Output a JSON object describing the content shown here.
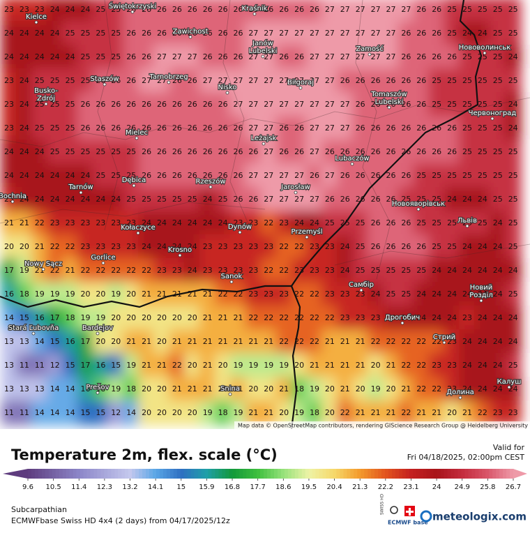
{
  "map": {
    "grid": [
      [
        23,
        23,
        23,
        24,
        24,
        24,
        25,
        25,
        26,
        26,
        26,
        26,
        26,
        26,
        26,
        26,
        26,
        26,
        26,
        26,
        26,
        27,
        27,
        27,
        27,
        27,
        27,
        26,
        26,
        25,
        25,
        25,
        25,
        25
      ],
      [
        24,
        24,
        24,
        24,
        25,
        25,
        25,
        25,
        26,
        26,
        26,
        26,
        26,
        26,
        26,
        26,
        27,
        27,
        27,
        27,
        27,
        27,
        27,
        27,
        27,
        27,
        26,
        26,
        26,
        25,
        24,
        24,
        25,
        25
      ],
      [
        24,
        24,
        24,
        24,
        24,
        25,
        25,
        25,
        26,
        26,
        27,
        27,
        27,
        26,
        26,
        26,
        27,
        27,
        26,
        26,
        27,
        27,
        27,
        27,
        27,
        27,
        26,
        26,
        26,
        26,
        25,
        25,
        25,
        24
      ],
      [
        23,
        24,
        25,
        25,
        25,
        25,
        26,
        26,
        26,
        27,
        27,
        26,
        26,
        27,
        27,
        27,
        27,
        27,
        27,
        27,
        27,
        27,
        26,
        26,
        26,
        26,
        26,
        26,
        25,
        25,
        25,
        25,
        25,
        25
      ],
      [
        23,
        24,
        25,
        25,
        25,
        26,
        26,
        26,
        26,
        26,
        26,
        26,
        26,
        26,
        26,
        27,
        27,
        27,
        27,
        27,
        27,
        27,
        27,
        26,
        26,
        26,
        26,
        26,
        25,
        25,
        25,
        25,
        25,
        24
      ],
      [
        23,
        24,
        25,
        25,
        25,
        26,
        26,
        26,
        26,
        26,
        26,
        26,
        26,
        26,
        26,
        26,
        27,
        27,
        26,
        26,
        27,
        27,
        27,
        26,
        26,
        26,
        26,
        26,
        26,
        26,
        25,
        25,
        25,
        24
      ],
      [
        24,
        24,
        24,
        25,
        25,
        25,
        25,
        25,
        25,
        26,
        26,
        26,
        26,
        26,
        26,
        26,
        26,
        27,
        26,
        26,
        27,
        26,
        26,
        26,
        26,
        26,
        26,
        26,
        26,
        26,
        25,
        25,
        25,
        25
      ],
      [
        24,
        24,
        24,
        24,
        24,
        24,
        25,
        25,
        25,
        26,
        26,
        26,
        26,
        26,
        26,
        26,
        27,
        27,
        27,
        27,
        26,
        27,
        26,
        26,
        26,
        26,
        26,
        25,
        25,
        25,
        25,
        25,
        25,
        25
      ],
      [
        23,
        24,
        24,
        24,
        24,
        24,
        24,
        24,
        25,
        25,
        25,
        25,
        25,
        24,
        25,
        26,
        26,
        27,
        27,
        27,
        27,
        26,
        26,
        26,
        26,
        26,
        25,
        25,
        25,
        24,
        24,
        24,
        25,
        25
      ],
      [
        21,
        21,
        22,
        23,
        23,
        23,
        23,
        23,
        23,
        24,
        24,
        24,
        24,
        24,
        24,
        23,
        23,
        22,
        23,
        24,
        24,
        25,
        25,
        25,
        26,
        26,
        26,
        25,
        25,
        25,
        25,
        25,
        24,
        25
      ],
      [
        20,
        20,
        21,
        22,
        22,
        23,
        23,
        23,
        23,
        24,
        24,
        24,
        24,
        23,
        23,
        23,
        23,
        23,
        22,
        22,
        23,
        23,
        24,
        25,
        26,
        26,
        26,
        26,
        25,
        25,
        24,
        24,
        24,
        25
      ],
      [
        17,
        19,
        21,
        22,
        21,
        22,
        22,
        22,
        22,
        22,
        23,
        23,
        24,
        23,
        23,
        23,
        23,
        22,
        22,
        23,
        23,
        23,
        24,
        25,
        25,
        25,
        25,
        25,
        24,
        24,
        24,
        24,
        24,
        24
      ],
      [
        16,
        18,
        19,
        19,
        19,
        20,
        20,
        19,
        20,
        21,
        21,
        21,
        21,
        21,
        22,
        22,
        23,
        23,
        23,
        22,
        22,
        23,
        23,
        23,
        24,
        25,
        25,
        24,
        24,
        24,
        24,
        24,
        24,
        25
      ],
      [
        14,
        15,
        16,
        17,
        18,
        19,
        19,
        20,
        20,
        20,
        20,
        20,
        20,
        21,
        21,
        21,
        22,
        22,
        22,
        22,
        22,
        22,
        23,
        23,
        23,
        24,
        24,
        24,
        24,
        24,
        23,
        24,
        24,
        24
      ],
      [
        13,
        13,
        14,
        15,
        16,
        17,
        20,
        20,
        21,
        21,
        20,
        21,
        21,
        21,
        21,
        21,
        21,
        21,
        22,
        22,
        22,
        21,
        21,
        21,
        22,
        22,
        22,
        22,
        22,
        23,
        24,
        24,
        24,
        24
      ],
      [
        13,
        11,
        11,
        12,
        15,
        17,
        16,
        15,
        19,
        21,
        21,
        22,
        20,
        21,
        20,
        19,
        19,
        19,
        19,
        20,
        21,
        21,
        21,
        21,
        20,
        21,
        22,
        22,
        23,
        23,
        24,
        24,
        24,
        25
      ],
      [
        13,
        13,
        13,
        14,
        14,
        16,
        18,
        19,
        18,
        20,
        20,
        21,
        21,
        21,
        20,
        21,
        20,
        20,
        21,
        18,
        19,
        20,
        21,
        20,
        19,
        20,
        21,
        22,
        22,
        23,
        24,
        24,
        24,
        24
      ],
      [
        11,
        11,
        14,
        14,
        14,
        15,
        15,
        12,
        14,
        20,
        20,
        20,
        20,
        19,
        18,
        19,
        21,
        21,
        20,
        19,
        18,
        20,
        22,
        21,
        21,
        21,
        22,
        21,
        21,
        20,
        21,
        22,
        23,
        23
      ]
    ],
    "cities": [
      [
        "Świętokrzyski"
      ],
      [
        "Kielce"
      ],
      [
        "Kraśnik"
      ],
      [
        "Zawichost"
      ],
      [
        "Janów",
        "Lubelski"
      ],
      [
        "Zamość"
      ],
      [
        "Нововолинськ"
      ],
      [
        "Staszów"
      ],
      [
        "Tarnobrzeg"
      ],
      [
        "Nisko"
      ],
      [
        "Biłgoraj"
      ],
      [
        "Busko-",
        "Zdrój"
      ],
      [
        "Tomaszów",
        "Lubelski"
      ],
      [
        "Червоноград"
      ],
      [
        "Mielec"
      ],
      [
        "Leżajsk"
      ],
      [
        "Lubaczów"
      ],
      [
        "Tarnów"
      ],
      [
        "Dębica"
      ],
      [
        "Rzeszów"
      ],
      [
        "Jarosław"
      ],
      [
        "Bochnia"
      ],
      [
        "Новояворівськ"
      ],
      [
        "Львів"
      ],
      [
        "Kołaczyce"
      ],
      [
        "Dynów"
      ],
      [
        "Przemyśl"
      ],
      [
        "Krosno"
      ],
      [
        "Gorlice"
      ],
      [
        "Nowy Sącz"
      ],
      [
        "Sanok"
      ],
      [
        "Самбір"
      ],
      [
        "Новий",
        "Розділ"
      ],
      [
        "Stará Ľubovňa"
      ],
      [
        "Bardejov"
      ],
      [
        "Дрогобич"
      ],
      [
        "Стрий"
      ],
      [
        "Prešov"
      ],
      [
        "Snina"
      ],
      [
        "Калуш"
      ],
      [
        "Долина"
      ]
    ],
    "attribution": "Map data © OpenStreetMap contributors, rendering GIScience Research Group @ Heidelberg University"
  },
  "legend": {
    "title": "Temperature 2m, flex. scale (°C)",
    "valid_label": "Valid for",
    "valid_time": "Fri 04/18/2025, 02:00pm CEST",
    "scale_ticks": [
      9.6,
      10.5,
      11.4,
      12.3,
      13.2,
      14.1,
      15,
      15.9,
      16.8,
      17.7,
      18.6,
      19.5,
      20.4,
      21.3,
      22.2,
      23.1,
      24,
      24.9,
      25.8,
      26.7
    ]
  },
  "footer": {
    "region": "Subcarpathian",
    "model": "ECMWFbase Swiss HD 4x4 (2 days) from  04/17/2025/12z",
    "brand": "meteologix.com",
    "logo_swiss": "SWISS HD",
    "logo_ecmwf": "ECMWF base"
  }
}
